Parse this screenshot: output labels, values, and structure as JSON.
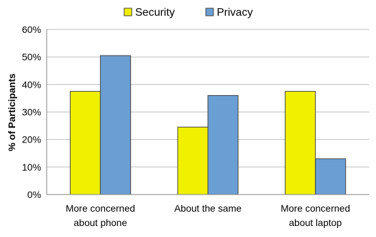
{
  "chart_data": {
    "type": "bar",
    "title": "",
    "xlabel": "",
    "ylabel": "% of Participants",
    "ylim": [
      0,
      60
    ],
    "yticks": [
      0,
      10,
      20,
      30,
      40,
      50,
      60
    ],
    "ytick_suffix": "%",
    "grid": true,
    "legend_position": "top",
    "categories": [
      [
        "More concerned",
        "about phone"
      ],
      [
        "About the same"
      ],
      [
        "More concerned",
        "about laptop"
      ]
    ],
    "series": [
      {
        "name": "Security",
        "color": "#f0f000",
        "values": [
          37.5,
          24.5,
          37.5
        ]
      },
      {
        "name": "Privacy",
        "color": "#6b9fd4",
        "values": [
          50.5,
          36,
          13
        ]
      }
    ]
  }
}
